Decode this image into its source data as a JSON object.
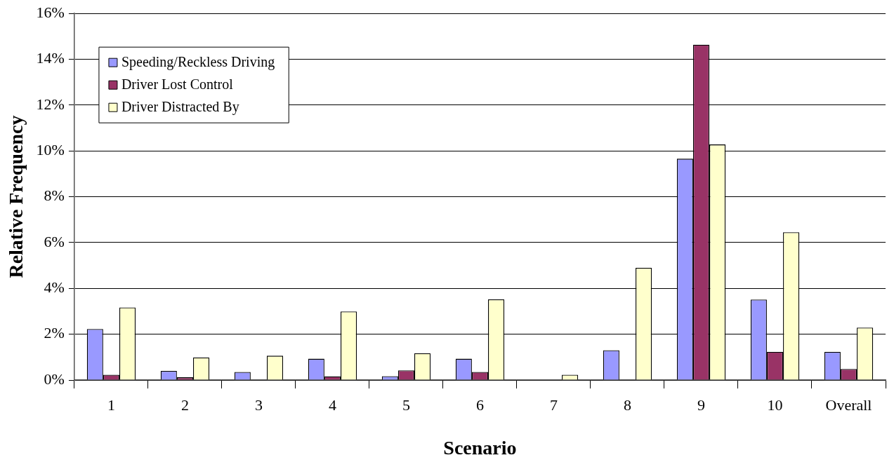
{
  "chart_data": {
    "type": "bar",
    "xlabel": "Scenario",
    "ylabel": "Relative Frequency",
    "categories": [
      "1",
      "2",
      "3",
      "4",
      "5",
      "6",
      "7",
      "8",
      "9",
      "10",
      "Overall"
    ],
    "series": [
      {
        "name": "Speeding/Reckless Driving",
        "color": "#9999ff",
        "values": [
          2.23,
          0.4,
          0.35,
          0.93,
          0.17,
          0.93,
          0,
          1.3,
          9.66,
          3.51,
          1.23
        ]
      },
      {
        "name": "Driver Lost Control",
        "color": "#993366",
        "values": [
          0.23,
          0.12,
          0,
          0.16,
          0.42,
          0.35,
          0,
          0,
          14.64,
          1.23,
          0.48
        ]
      },
      {
        "name": "Driver Distracted By",
        "color": "#ffffcc",
        "values": [
          3.17,
          0.99,
          1.06,
          2.99,
          1.17,
          3.52,
          0.23,
          4.9,
          10.28,
          6.45,
          2.29
        ]
      }
    ],
    "ylim": [
      0,
      16
    ],
    "yticks": [
      {
        "value": 0,
        "label": "0%"
      },
      {
        "value": 2,
        "label": "2%"
      },
      {
        "value": 4,
        "label": "4%"
      },
      {
        "value": 6,
        "label": "6%"
      },
      {
        "value": 8,
        "label": "8%"
      },
      {
        "value": 10,
        "label": "10%"
      },
      {
        "value": 12,
        "label": "12%"
      },
      {
        "value": 14,
        "label": "14%"
      },
      {
        "value": 16,
        "label": "16%"
      }
    ],
    "grid": "y",
    "legend": "top left"
  }
}
